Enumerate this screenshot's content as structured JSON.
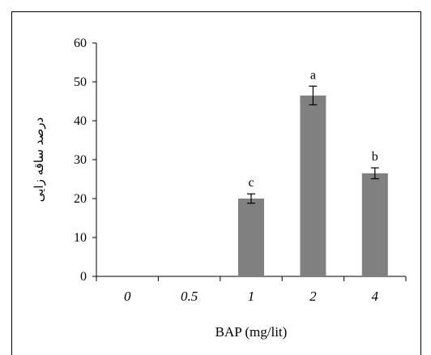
{
  "chart_data": {
    "type": "bar",
    "categories": [
      "0",
      "0.5",
      "1",
      "2",
      "4"
    ],
    "values": [
      0,
      0,
      20,
      46.5,
      26.5
    ],
    "errors": [
      0,
      0,
      1.2,
      2.4,
      1.4
    ],
    "letters": [
      "",
      "",
      "c",
      "a",
      "b"
    ],
    "xlabel": "BAP (mg/lit)",
    "ylabel": "درصد ساقه زایی",
    "yticks": [
      "0",
      "10",
      "20",
      "30",
      "40",
      "50",
      "60"
    ],
    "ylim": [
      0,
      60
    ],
    "bar_color": "#808080",
    "grid": false,
    "legend": "none"
  }
}
